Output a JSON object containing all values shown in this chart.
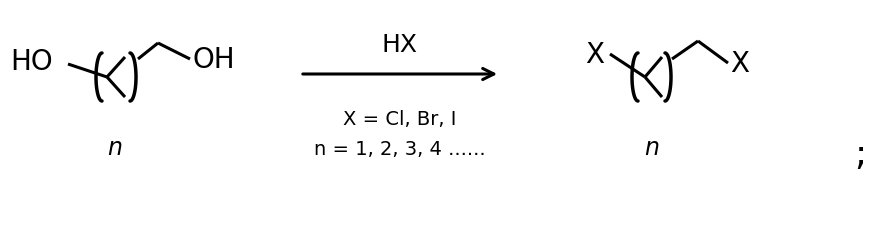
{
  "figsize": [
    8.9,
    2.26
  ],
  "dpi": 100,
  "bg_color": "#ffffff",
  "text_color": "#000000",
  "lw": 2.2,
  "arrow_color": "#000000",
  "hx_label": "HX",
  "conditions_line1": "X = Cl, Br, I",
  "conditions_line2": "n = 1, 2, 3, 4 ......",
  "semicolon": ";"
}
